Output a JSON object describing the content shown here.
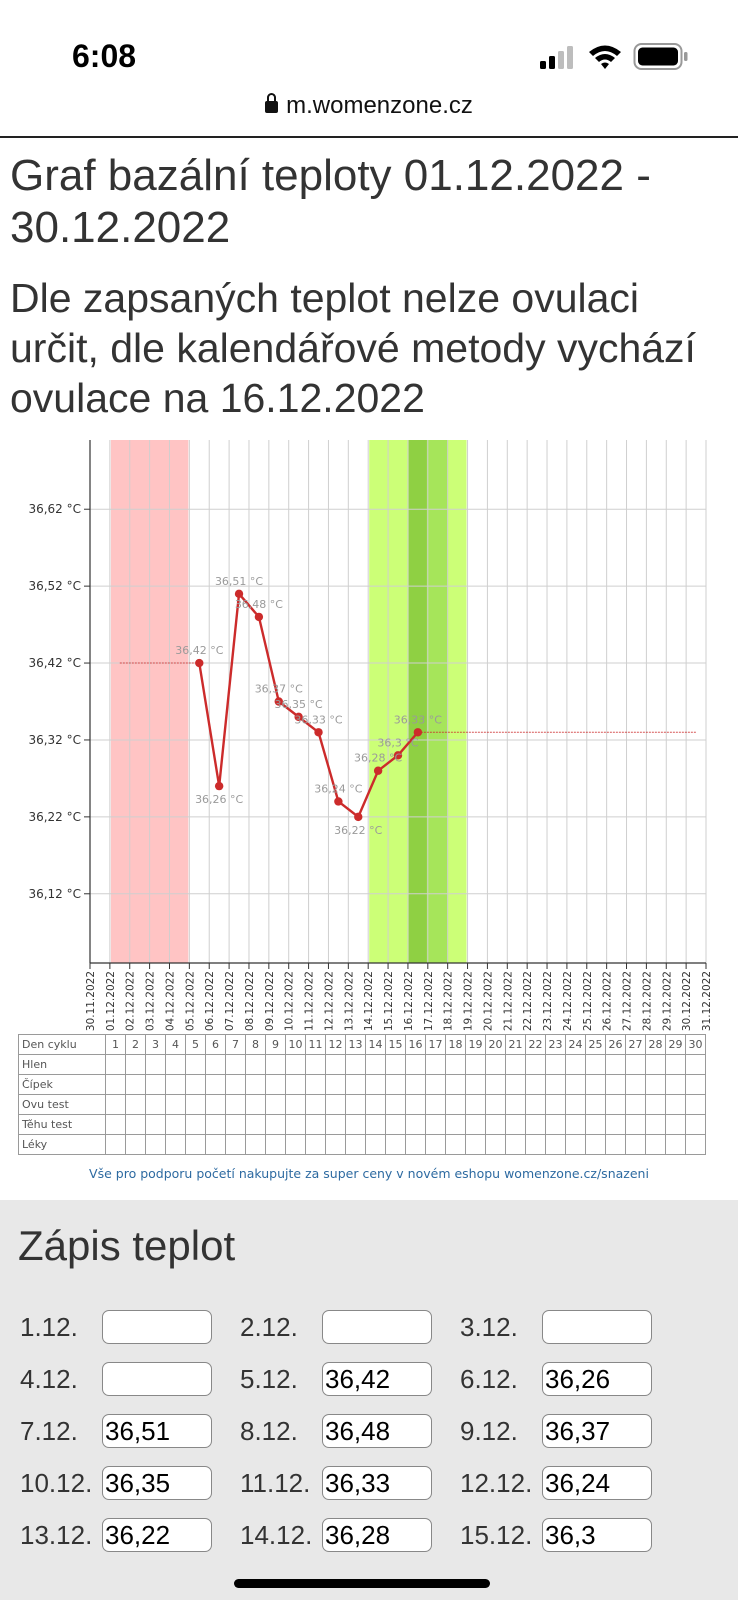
{
  "status_bar": {
    "time": "6:08"
  },
  "browser": {
    "url": "m.womenzone.cz"
  },
  "page": {
    "title": "Graf bazální teploty 01.12.2022 - 30.12.2022",
    "ovulation_note": "Dle zapsaných teplot nelze ovulaci určit, dle kalendářové metody vychází ovulace na 16.12.2022"
  },
  "colors": {
    "line": "#cc2b2b",
    "menstruation_band": "#ffc4c4",
    "fertile_band": "#ccff77",
    "ovulation_band": "#a6e55a",
    "ovulation_day": "#8fd043",
    "grid": "#cfcfcf",
    "link": "#2d6aa1"
  },
  "chart_data": {
    "type": "line",
    "title": "",
    "xlabel": "",
    "ylabel": "",
    "ylim": [
      36.03,
      36.71
    ],
    "y_ticks": [
      "36,62 °C",
      "36,52 °C",
      "36,42 °C",
      "36,32 °C",
      "36,22 °C",
      "36,12 °C"
    ],
    "y_tick_values": [
      36.62,
      36.52,
      36.42,
      36.32,
      36.22,
      36.12
    ],
    "x_categories": [
      "30.11.2022",
      "01.12.2022",
      "02.12.2022",
      "03.12.2022",
      "04.12.2022",
      "05.12.2022",
      "06.12.2022",
      "07.12.2022",
      "08.12.2022",
      "09.12.2022",
      "10.12.2022",
      "11.12.2022",
      "12.12.2022",
      "13.12.2022",
      "14.12.2022",
      "15.12.2022",
      "16.12.2022",
      "17.12.2022",
      "18.12.2022",
      "19.12.2022",
      "20.12.2022",
      "21.12.2022",
      "22.12.2022",
      "23.12.2022",
      "24.12.2022",
      "25.12.2022",
      "26.12.2022",
      "27.12.2022",
      "28.12.2022",
      "29.12.2022",
      "30.12.2022",
      "31.12.2022"
    ],
    "series": [
      {
        "points": [
          {
            "day": 5,
            "value": 36.42,
            "label": "36,42 °C"
          },
          {
            "day": 6,
            "value": 36.26,
            "label": "36,26 °C"
          },
          {
            "day": 7,
            "value": 36.51,
            "label": "36,51 °C"
          },
          {
            "day": 8,
            "value": 36.48,
            "label": "36,48 °C"
          },
          {
            "day": 9,
            "value": 36.37,
            "label": "36,37 °C"
          },
          {
            "day": 10,
            "value": 36.35,
            "label": "36,35 °C"
          },
          {
            "day": 11,
            "value": 36.33,
            "label": "36,33 °C"
          },
          {
            "day": 12,
            "value": 36.24,
            "label": "36,24 °C"
          },
          {
            "day": 13,
            "value": 36.22,
            "label": "36,22 °C"
          },
          {
            "day": 14,
            "value": 36.28,
            "label": "36,28 °C"
          },
          {
            "day": 15,
            "value": 36.3,
            "label": "36,3 °C"
          },
          {
            "day": 16,
            "value": 36.33,
            "label": "36,33 °C"
          }
        ]
      }
    ],
    "extrapolation": {
      "start_day": 1,
      "start_value": 36.42,
      "end_day": 30,
      "end_value": 36.33
    },
    "bands": {
      "menstruation": [
        1,
        4
      ],
      "fertile": [
        14,
        18
      ],
      "ovulation_core": [
        16,
        17
      ],
      "ovulation_day": 16
    },
    "grid": true
  },
  "cycle_table": {
    "row_labels": [
      "Den cyklu",
      "Hlen",
      "Čípek",
      "Ovu test",
      "Těhu test",
      "Léky"
    ],
    "days": [
      "1",
      "2",
      "3",
      "4",
      "5",
      "6",
      "7",
      "8",
      "9",
      "10",
      "11",
      "12",
      "13",
      "14",
      "15",
      "16",
      "17",
      "18",
      "19",
      "20",
      "21",
      "22",
      "23",
      "24",
      "25",
      "26",
      "27",
      "28",
      "29",
      "30"
    ]
  },
  "promo": {
    "text": "Vše pro podporu početí nakupujte za super ceny v novém eshopu womenzone.cz/snazeni"
  },
  "entries": {
    "title": "Zápis teplot",
    "items": [
      {
        "label": "1.12.",
        "value": ""
      },
      {
        "label": "2.12.",
        "value": ""
      },
      {
        "label": "3.12.",
        "value": ""
      },
      {
        "label": "4.12.",
        "value": ""
      },
      {
        "label": "5.12.",
        "value": "36,42"
      },
      {
        "label": "6.12.",
        "value": "36,26"
      },
      {
        "label": "7.12.",
        "value": "36,51"
      },
      {
        "label": "8.12.",
        "value": "36,48"
      },
      {
        "label": "9.12.",
        "value": "36,37"
      },
      {
        "label": "10.12.",
        "value": "36,35"
      },
      {
        "label": "11.12.",
        "value": "36,33"
      },
      {
        "label": "12.12.",
        "value": "36,24"
      },
      {
        "label": "13.12.",
        "value": "36,22"
      },
      {
        "label": "14.12.",
        "value": "36,28"
      },
      {
        "label": "15.12.",
        "value": "36,3"
      }
    ]
  }
}
